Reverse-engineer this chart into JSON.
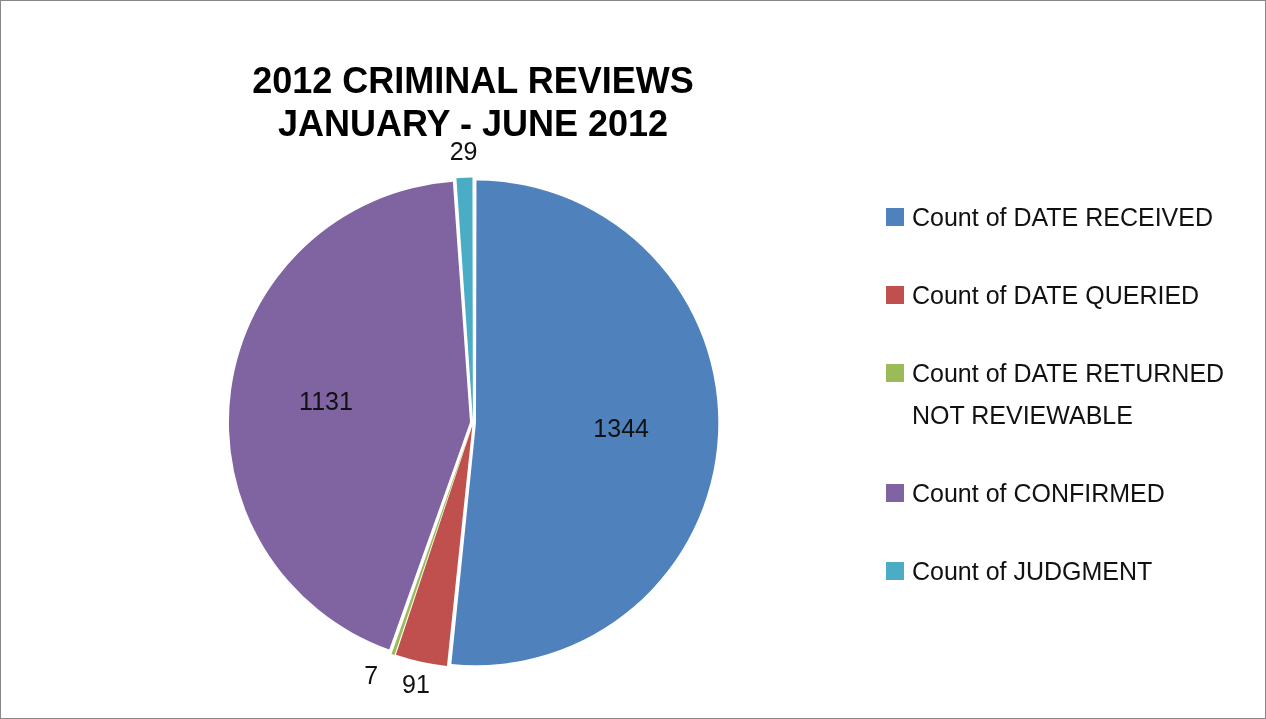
{
  "chart_data": {
    "type": "pie",
    "title": "2012 CRIMINAL REVIEWS\nJANUARY - JUNE 2012",
    "categories": [
      "Count of DATE RECEIVED",
      "Count of DATE QUERIED",
      "Count of DATE RETURNED NOT REVIEWABLE",
      "Count of CONFIRMED",
      "Count of JUDGMENT"
    ],
    "values": [
      1344,
      91,
      7,
      1131,
      29
    ],
    "colors": [
      "#4f81bd",
      "#c0504d",
      "#9bbb59",
      "#8064a2",
      "#4bacc6"
    ],
    "data_labels": true,
    "legend": "right"
  }
}
